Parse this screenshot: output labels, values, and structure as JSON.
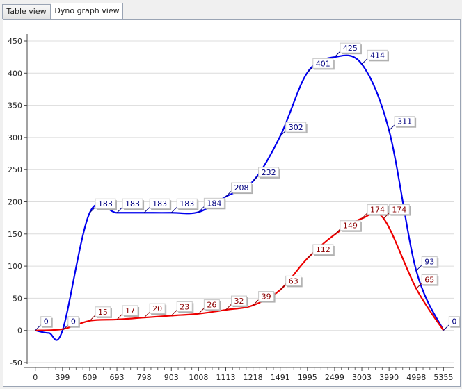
{
  "tabs": [
    {
      "label": "Table view",
      "active": false
    },
    {
      "label": "Dyno graph view",
      "active": true
    }
  ],
  "colors": {
    "series1": "#0000ee",
    "series2": "#ee0000",
    "label1": "#000080",
    "label2": "#8b0000",
    "grid": "#dcdcdc"
  },
  "chart_data": {
    "type": "line",
    "x_tick_labels": [
      "0",
      "399",
      "609",
      "693",
      "798",
      "903",
      "1008",
      "1113",
      "1218",
      "1491",
      "1995",
      "2499",
      "3003",
      "3990",
      "4998",
      "5355"
    ],
    "ylim": [
      -50,
      450
    ],
    "y_ticks": [
      -50,
      0,
      50,
      100,
      150,
      200,
      250,
      300,
      350,
      400,
      450
    ],
    "grid": true,
    "series": [
      {
        "color": "#0000ee",
        "points": [
          [
            0,
            0
          ],
          [
            0.5,
            -4
          ],
          [
            1,
            0
          ],
          [
            2,
            183
          ],
          [
            3,
            183
          ],
          [
            4,
            183
          ],
          [
            5,
            183
          ],
          [
            6,
            184
          ],
          [
            7,
            208
          ],
          [
            8,
            232
          ],
          [
            9,
            302
          ],
          [
            10,
            401
          ],
          [
            11,
            425
          ],
          [
            12,
            414
          ],
          [
            13,
            311
          ],
          [
            14,
            93
          ],
          [
            15,
            0
          ]
        ],
        "labels": [
          {
            "i": 0,
            "text": "0"
          },
          {
            "i": 2,
            "text": "0"
          },
          {
            "i": 3,
            "text": "183"
          },
          {
            "i": 4,
            "text": "183"
          },
          {
            "i": 5,
            "text": "183"
          },
          {
            "i": 6,
            "text": "183"
          },
          {
            "i": 7,
            "text": "184"
          },
          {
            "i": 8,
            "text": "208"
          },
          {
            "i": 9,
            "text": "232"
          },
          {
            "i": 10,
            "text": "302"
          },
          {
            "i": 11,
            "text": "401"
          },
          {
            "i": 12,
            "text": "425"
          },
          {
            "i": 13,
            "text": "414"
          },
          {
            "i": 14,
            "text": "311"
          },
          {
            "i": 15,
            "text": "93"
          },
          {
            "i": 16,
            "text": "0"
          }
        ]
      },
      {
        "color": "#ee0000",
        "points": [
          [
            0,
            0
          ],
          [
            1,
            2
          ],
          [
            2,
            15
          ],
          [
            3,
            17
          ],
          [
            4,
            20
          ],
          [
            5,
            23
          ],
          [
            6,
            26
          ],
          [
            7,
            32
          ],
          [
            8,
            39
          ],
          [
            9,
            63
          ],
          [
            10,
            112
          ],
          [
            11,
            149
          ],
          [
            12,
            174
          ],
          [
            12.8,
            174
          ],
          [
            14,
            65
          ],
          [
            15,
            0
          ]
        ],
        "labels": [
          {
            "i": 2,
            "text": "15"
          },
          {
            "i": 3,
            "text": "17"
          },
          {
            "i": 4,
            "text": "20"
          },
          {
            "i": 5,
            "text": "23"
          },
          {
            "i": 6,
            "text": "26"
          },
          {
            "i": 7,
            "text": "32"
          },
          {
            "i": 8,
            "text": "39"
          },
          {
            "i": 9,
            "text": "63"
          },
          {
            "i": 10,
            "text": "112"
          },
          {
            "i": 11,
            "text": "149"
          },
          {
            "i": 12,
            "text": "174"
          },
          {
            "i": 13,
            "text": "174"
          },
          {
            "i": 14,
            "text": "65"
          }
        ]
      }
    ]
  }
}
